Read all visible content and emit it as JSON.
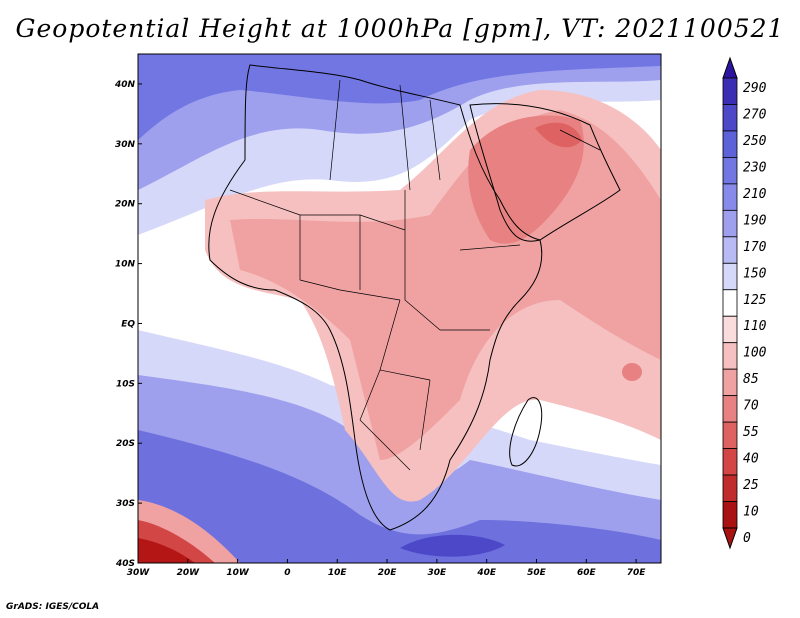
{
  "title": "Geopotential Height at 1000hPa [gpm], VT: 2021100521",
  "footer": "GrADS: IGES/COLA",
  "map": {
    "variable": "Geopotential Height",
    "level": "1000hPa",
    "units": "gpm",
    "valid_time": "2021100521",
    "lon_range": [
      -30,
      75
    ],
    "lat_range": [
      -40,
      45
    ],
    "lon_ticks": [
      "30W",
      "20W",
      "10W",
      "0",
      "10E",
      "20E",
      "30E",
      "40E",
      "50E",
      "60E",
      "70E"
    ],
    "lat_ticks": [
      "40S",
      "30S",
      "20S",
      "10S",
      "EQ",
      "10N",
      "20N",
      "30N",
      "40N"
    ]
  },
  "colorbar": {
    "levels": [
      "290",
      "270",
      "250",
      "230",
      "210",
      "190",
      "170",
      "150",
      "125",
      "110",
      "100",
      "85",
      "70",
      "55",
      "40",
      "25",
      "10",
      "0"
    ],
    "colors": [
      "#2c14a0",
      "#3c2eb4",
      "#4c48c8",
      "#5e62d8",
      "#7276e2",
      "#878ae8",
      "#9ea0ee",
      "#b8baf4",
      "#d6d8fa",
      "#ffffff",
      "#fbdcdc",
      "#f6c0c0",
      "#f0a2a2",
      "#e88282",
      "#de6262",
      "#d24646",
      "#c02c2c",
      "#a81212"
    ]
  },
  "palette": {
    "ocean_low": "#ffffff",
    "land_high": "#f3b2b0",
    "arabia_peak": "#df6a68",
    "south_deep": "#5a58d4",
    "south_mid": "#8e8ee8",
    "south_light": "#c8c8f4",
    "sw_corner": "#b41616",
    "north_blue": "#7474de"
  }
}
